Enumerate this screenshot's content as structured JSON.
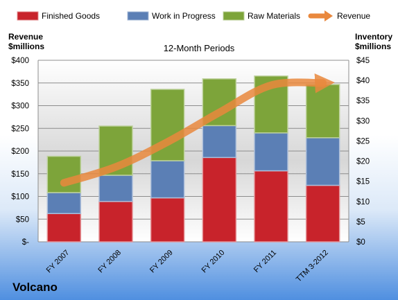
{
  "chart_data": {
    "type": "bar",
    "subtitle": "12-Month Periods",
    "brand": "Volcano",
    "categories": [
      "FY 2007",
      "FY 2008",
      "FY 2009",
      "FY 2010",
      "FY 2011",
      "TTM 3-2012"
    ],
    "series": [
      {
        "name": "Finished Goods",
        "axis": "right",
        "color": "#c8232b",
        "values": [
          7.0,
          10.0,
          10.9,
          20.9,
          17.6,
          14.0
        ]
      },
      {
        "name": "Work in Progress",
        "axis": "right",
        "color": "#5b7fb5",
        "values": [
          5.2,
          6.5,
          9.2,
          7.9,
          9.4,
          11.8
        ]
      },
      {
        "name": "Raw Materials",
        "axis": "right",
        "color": "#7da43a",
        "values": [
          9.0,
          12.2,
          17.7,
          11.6,
          14.1,
          13.2
        ]
      },
      {
        "name": "Revenue",
        "type": "line",
        "axis": "left",
        "color": "#e9883d",
        "values": [
          130,
          165,
          220,
          285,
          345,
          350
        ]
      }
    ],
    "left_axis": {
      "title_line1": "Revenue",
      "title_line2": "$millions",
      "ylim": [
        0,
        400
      ],
      "ticks": [
        "$-",
        "$50",
        "$100",
        "$150",
        "$200",
        "$250",
        "$300",
        "$350",
        "$400"
      ]
    },
    "right_axis": {
      "title_line1": "Inventory",
      "title_line2": "$millions",
      "ylim": [
        0,
        45
      ],
      "ticks": [
        "$0",
        "$5",
        "$10",
        "$15",
        "$20",
        "$25",
        "$30",
        "$35",
        "$40",
        "$45"
      ]
    },
    "grid": true,
    "legend_position": "top"
  }
}
